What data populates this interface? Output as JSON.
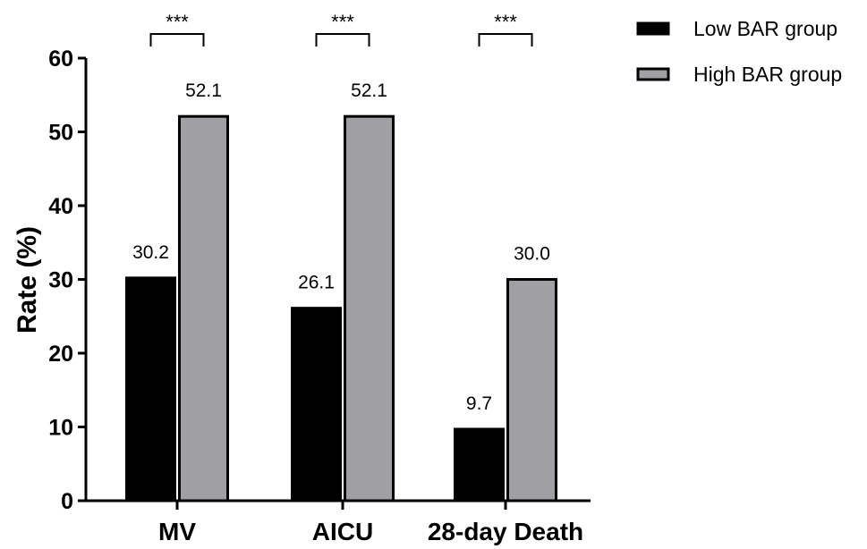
{
  "chart_data": {
    "type": "bar",
    "ylabel": "Rate (%)",
    "ylim": [
      0,
      60
    ],
    "yticks": [
      0,
      10,
      20,
      30,
      40,
      50,
      60
    ],
    "categories": [
      "MV",
      "AICU",
      "28-day Death"
    ],
    "series": [
      {
        "name": "Low BAR group",
        "color": "#000000",
        "values": [
          30.2,
          26.1,
          9.7
        ],
        "labels": [
          "30.2",
          "26.1",
          "9.7"
        ]
      },
      {
        "name": "High BAR group",
        "color": "#a0a0a4",
        "values": [
          52.1,
          52.1,
          30.0
        ],
        "labels": [
          "52.1",
          "52.1",
          "30.0"
        ]
      }
    ],
    "significance": [
      "***",
      "***",
      "***"
    ],
    "legend_position": "top-right",
    "grid": false
  }
}
